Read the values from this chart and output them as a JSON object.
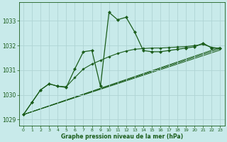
{
  "title": "Graphe pression niveau de la mer (hPa)",
  "background_color": "#c8eaea",
  "grid_color": "#afd4d4",
  "line_color": "#1a5c1a",
  "xlim": [
    -0.5,
    23.5
  ],
  "ylim": [
    1028.75,
    1033.75
  ],
  "yticks": [
    1029,
    1030,
    1031,
    1032,
    1033
  ],
  "xticks": [
    0,
    1,
    2,
    3,
    4,
    5,
    6,
    7,
    8,
    9,
    10,
    11,
    12,
    13,
    14,
    15,
    16,
    17,
    18,
    19,
    20,
    21,
    22,
    23
  ],
  "main_series": {
    "x": [
      0,
      1,
      2,
      3,
      4,
      5,
      6,
      7,
      8,
      9,
      10,
      11,
      12,
      13,
      14,
      15,
      16,
      17,
      18,
      19,
      20,
      21,
      22,
      23
    ],
    "y": [
      1029.2,
      1029.7,
      1030.2,
      1030.45,
      1030.35,
      1030.3,
      1031.05,
      1031.75,
      1031.8,
      1030.35,
      1033.35,
      1033.05,
      1033.15,
      1032.55,
      1031.8,
      1031.75,
      1031.75,
      1031.8,
      1031.85,
      1031.9,
      1031.95,
      1032.1,
      1031.9,
      1031.9
    ]
  },
  "smooth_series": {
    "x": [
      0,
      1,
      2,
      3,
      4,
      5,
      6,
      7,
      8,
      9,
      10,
      11,
      12,
      13,
      14,
      15,
      16,
      17,
      18,
      19,
      20,
      21,
      22,
      23
    ],
    "y": [
      1029.2,
      1029.7,
      1030.2,
      1030.45,
      1030.35,
      1030.33,
      1030.7,
      1031.05,
      1031.25,
      1031.4,
      1031.55,
      1031.68,
      1031.78,
      1031.85,
      1031.88,
      1031.9,
      1031.9,
      1031.92,
      1031.94,
      1031.96,
      1032.0,
      1032.05,
      1031.93,
      1031.88
    ]
  },
  "regression_lines": [
    {
      "x": [
        0,
        23
      ],
      "y": [
        1029.2,
        1031.88
      ]
    },
    {
      "x": [
        0,
        23
      ],
      "y": [
        1029.2,
        1031.93
      ]
    },
    {
      "x": [
        0,
        23
      ],
      "y": [
        1029.2,
        1031.82
      ]
    }
  ]
}
